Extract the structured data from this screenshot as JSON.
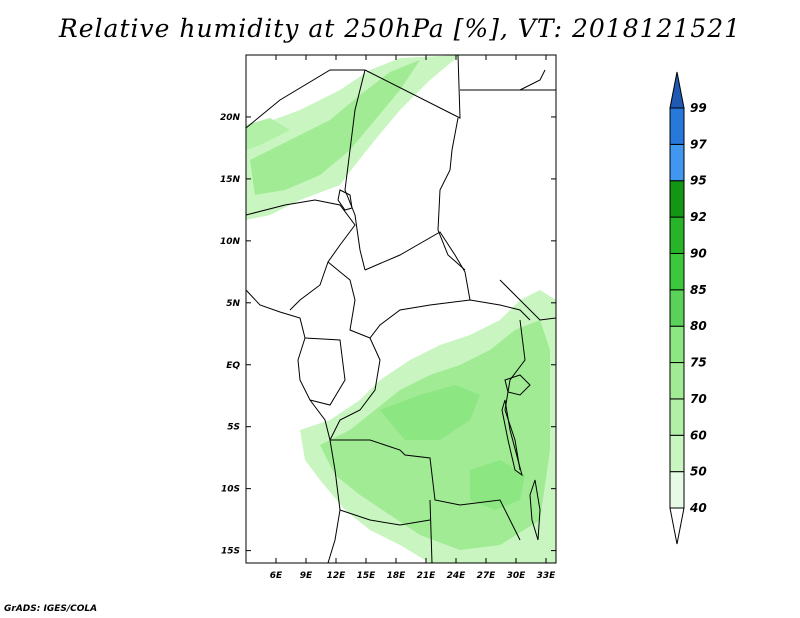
{
  "title": "Relative humidity at 250hPa [%], VT: 2018121521",
  "credit": "GrADS: IGES/COLA",
  "map": {
    "lon_range": [
      3.0,
      34.0
    ],
    "lat_range": [
      -16.0,
      25.0
    ],
    "lon_ticks": [
      {
        "value": 6,
        "label": "6E"
      },
      {
        "value": 9,
        "label": "9E"
      },
      {
        "value": 12,
        "label": "12E"
      },
      {
        "value": 15,
        "label": "15E"
      },
      {
        "value": 18,
        "label": "18E"
      },
      {
        "value": 21,
        "label": "21E"
      },
      {
        "value": 24,
        "label": "24E"
      },
      {
        "value": 27,
        "label": "27E"
      },
      {
        "value": 30,
        "label": "30E"
      },
      {
        "value": 33,
        "label": "33E"
      }
    ],
    "lat_ticks": [
      {
        "value": 20,
        "label": "20N"
      },
      {
        "value": 15,
        "label": "15N"
      },
      {
        "value": 10,
        "label": "10N"
      },
      {
        "value": 5,
        "label": "5N"
      },
      {
        "value": 0,
        "label": "EQ"
      },
      {
        "value": -5,
        "label": "5S"
      },
      {
        "value": -10,
        "label": "10S"
      },
      {
        "value": -15,
        "label": "15S"
      }
    ]
  },
  "colorbar": {
    "levels": [
      {
        "label": "40",
        "color": "#e6fae6"
      },
      {
        "label": "50",
        "color": "#c8f5c0"
      },
      {
        "label": "60",
        "color": "#b2f0a8"
      },
      {
        "label": "70",
        "color": "#a0eb94"
      },
      {
        "label": "75",
        "color": "#8ce682"
      },
      {
        "label": "80",
        "color": "#5ad25a"
      },
      {
        "label": "85",
        "color": "#3cc83c"
      },
      {
        "label": "90",
        "color": "#28b428"
      },
      {
        "label": "92",
        "color": "#149614"
      },
      {
        "label": "95",
        "color": "#4196f0"
      },
      {
        "label": "97",
        "color": "#2878dc"
      },
      {
        "label": "99",
        "color": "#1e5ab4"
      }
    ],
    "bottom_color": "#ffffff",
    "top_color": "#1e5ab4"
  }
}
